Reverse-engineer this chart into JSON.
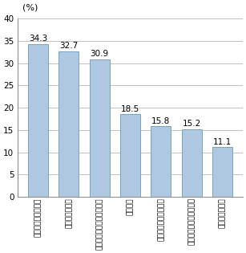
{
  "categories": [
    "動画等の送受信機能",
    "身分証明自機能",
    "地図等ナビゲーション機能",
    "決済機能",
    "家電等の遠隔操作機能",
    "交通機関の料金精算機能",
    "テレビ電話機能"
  ],
  "values": [
    34.3,
    32.7,
    30.9,
    18.5,
    15.8,
    15.2,
    11.1
  ],
  "bar_color": "#adc8e0",
  "bar_edge_color": "#6699bb",
  "ylabel": "(%)",
  "ylim": [
    0,
    40
  ],
  "yticks": [
    0,
    5,
    10,
    15,
    20,
    25,
    30,
    35,
    40
  ],
  "background_color": "#ffffff",
  "grid_color": "#aaaaaa",
  "label_fontsize": 6.5,
  "value_fontsize": 7.5,
  "ylabel_fontsize": 8
}
